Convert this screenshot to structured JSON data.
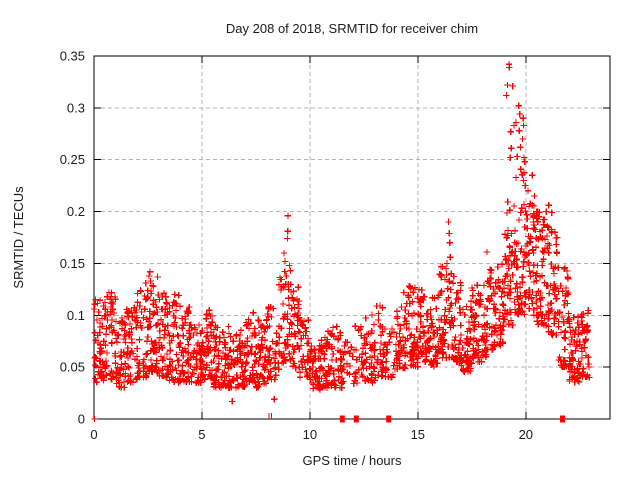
{
  "window": {
    "background": "#ffffff"
  },
  "chart_data": {
    "type": "scatter",
    "title": "Day 208 of 2018, SRMTID for receiver chim",
    "xlabel": "GPS time / hours",
    "ylabel": "SRMTID / TECUs",
    "series_name": "SRMTID",
    "legend": "none",
    "grid": true,
    "xlim": [
      0,
      23.9
    ],
    "ylim": [
      0,
      0.35
    ],
    "xticks": [
      0,
      5,
      10,
      15,
      20
    ],
    "xticklabels": [
      "0",
      "5",
      "10",
      "15",
      "20"
    ],
    "yticks": [
      0,
      0.05,
      0.1,
      0.15,
      0.2,
      0.25,
      0.3,
      0.35
    ],
    "yticklabels": [
      "0",
      "0.05",
      "0.1",
      "0.15",
      "0.2",
      "0.25",
      "0.3",
      "0.35"
    ],
    "marker": {
      "shape": "plus",
      "color": "#ff0000",
      "size": 6.4,
      "stroke_width": 1.2
    },
    "axis_color": "#000000",
    "grid_color": "#b3b3b3",
    "seed": 20180208,
    "density_bins": [
      [
        0.0,
        0.5,
        48,
        0.035,
        0.115
      ],
      [
        0.5,
        1.0,
        48,
        0.038,
        0.122
      ],
      [
        1.0,
        1.5,
        48,
        0.03,
        0.098
      ],
      [
        1.5,
        2.0,
        48,
        0.035,
        0.108
      ],
      [
        2.0,
        2.5,
        48,
        0.04,
        0.126
      ],
      [
        2.5,
        3.0,
        48,
        0.045,
        0.14
      ],
      [
        3.0,
        3.5,
        48,
        0.04,
        0.122
      ],
      [
        3.5,
        4.0,
        48,
        0.035,
        0.12
      ],
      [
        4.0,
        4.5,
        48,
        0.035,
        0.112
      ],
      [
        4.5,
        5.0,
        48,
        0.035,
        0.092
      ],
      [
        5.0,
        5.5,
        48,
        0.038,
        0.105
      ],
      [
        5.5,
        6.0,
        48,
        0.03,
        0.09
      ],
      [
        6.0,
        6.5,
        46,
        0.03,
        0.096
      ],
      [
        6.5,
        7.0,
        48,
        0.03,
        0.09
      ],
      [
        7.0,
        7.5,
        48,
        0.035,
        0.105
      ],
      [
        7.5,
        8.0,
        48,
        0.03,
        0.096
      ],
      [
        8.0,
        8.5,
        42,
        0.038,
        0.11
      ],
      [
        8.5,
        9.0,
        42,
        0.048,
        0.145
      ],
      [
        9.0,
        9.5,
        42,
        0.048,
        0.138
      ],
      [
        9.5,
        10.0,
        42,
        0.04,
        0.1
      ],
      [
        10.0,
        10.5,
        48,
        0.028,
        0.075
      ],
      [
        10.5,
        11.0,
        48,
        0.03,
        0.085
      ],
      [
        11.0,
        11.5,
        42,
        0.03,
        0.09
      ],
      [
        11.5,
        12.0,
        16,
        0.035,
        0.08
      ],
      [
        12.0,
        12.5,
        28,
        0.032,
        0.092
      ],
      [
        12.5,
        13.0,
        42,
        0.035,
        0.105
      ],
      [
        13.0,
        13.5,
        38,
        0.04,
        0.11
      ],
      [
        13.5,
        14.0,
        24,
        0.04,
        0.1
      ],
      [
        14.0,
        14.5,
        48,
        0.048,
        0.122
      ],
      [
        14.5,
        15.0,
        48,
        0.05,
        0.13
      ],
      [
        15.0,
        15.5,
        48,
        0.055,
        0.125
      ],
      [
        15.5,
        16.0,
        48,
        0.05,
        0.13
      ],
      [
        16.0,
        16.5,
        48,
        0.058,
        0.15
      ],
      [
        16.5,
        17.0,
        48,
        0.055,
        0.14
      ],
      [
        17.0,
        17.5,
        48,
        0.045,
        0.12
      ],
      [
        17.5,
        18.0,
        48,
        0.055,
        0.13
      ],
      [
        18.0,
        18.5,
        48,
        0.06,
        0.145
      ],
      [
        18.5,
        19.0,
        48,
        0.07,
        0.15
      ],
      [
        19.0,
        19.5,
        52,
        0.09,
        0.21
      ],
      [
        19.5,
        20.0,
        55,
        0.1,
        0.245
      ],
      [
        20.0,
        20.5,
        55,
        0.1,
        0.21
      ],
      [
        20.5,
        21.0,
        52,
        0.09,
        0.2
      ],
      [
        21.0,
        21.5,
        52,
        0.08,
        0.185
      ],
      [
        21.5,
        22.0,
        48,
        0.05,
        0.15
      ],
      [
        22.0,
        22.5,
        52,
        0.035,
        0.1
      ],
      [
        22.5,
        22.95,
        42,
        0.04,
        0.105
      ]
    ],
    "peak_points": [
      [
        19.22,
        0.342
      ],
      [
        19.23,
        0.339
      ],
      [
        19.15,
        0.322
      ],
      [
        19.4,
        0.321
      ],
      [
        19.1,
        0.312
      ],
      [
        19.67,
        0.302
      ],
      [
        19.72,
        0.294
      ],
      [
        19.55,
        0.286
      ],
      [
        19.45,
        0.283
      ],
      [
        19.7,
        0.278
      ],
      [
        19.3,
        0.277
      ],
      [
        19.75,
        0.262
      ],
      [
        19.33,
        0.261
      ],
      [
        19.6,
        0.253
      ],
      [
        19.28,
        0.252
      ],
      [
        19.88,
        0.29
      ],
      [
        19.9,
        0.283
      ],
      [
        19.85,
        0.27
      ],
      [
        19.92,
        0.252
      ],
      [
        19.95,
        0.248
      ],
      [
        19.9,
        0.23
      ],
      [
        19.97,
        0.225
      ],
      [
        20.3,
        0.235
      ],
      [
        20.1,
        0.22
      ],
      [
        20.4,
        0.215
      ],
      [
        20.15,
        0.205
      ],
      [
        20.5,
        0.2
      ],
      [
        20.6,
        0.195
      ],
      [
        20.35,
        0.19
      ],
      [
        21.06,
        0.206
      ],
      [
        20.95,
        0.2
      ],
      [
        21.2,
        0.199
      ],
      [
        21.0,
        0.186
      ],
      [
        21.35,
        0.18
      ],
      [
        21.45,
        0.175
      ],
      [
        21.5,
        0.146
      ],
      [
        8.98,
        0.196
      ],
      [
        8.97,
        0.181
      ],
      [
        8.96,
        0.174
      ],
      [
        8.8,
        0.16
      ],
      [
        8.85,
        0.152
      ],
      [
        9.05,
        0.148
      ],
      [
        9.1,
        0.143
      ],
      [
        8.9,
        0.138
      ],
      [
        9.0,
        0.13
      ],
      [
        9.02,
        0.125
      ],
      [
        16.42,
        0.19
      ],
      [
        16.45,
        0.179
      ],
      [
        16.48,
        0.17
      ],
      [
        16.5,
        0.156
      ],
      [
        16.35,
        0.15
      ],
      [
        16.3,
        0.145
      ],
      [
        16.55,
        0.14
      ],
      [
        18.2,
        0.161
      ],
      [
        2.6,
        0.142
      ],
      [
        2.55,
        0.138
      ],
      [
        2.62,
        0.133
      ],
      [
        2.4,
        0.131
      ],
      [
        2.75,
        0.128
      ],
      [
        0.02,
        0.106
      ],
      [
        0.7,
        0.122
      ],
      [
        13.1,
        0.109
      ],
      [
        14.35,
        0.122
      ],
      [
        14.6,
        0.128
      ],
      [
        22.6,
        0.098
      ],
      [
        22.85,
        0.09
      ],
      [
        6.4,
        0.017
      ],
      [
        8.35,
        0.019
      ]
    ],
    "zero_marks": [
      {
        "x": 0.03,
        "style": "plus"
      },
      {
        "x": 8.1,
        "style": "tick"
      },
      {
        "x": 8.22,
        "style": "tick"
      },
      {
        "x": 11.5,
        "style": "square"
      },
      {
        "x": 12.15,
        "style": "square"
      },
      {
        "x": 13.65,
        "style": "square"
      },
      {
        "x": 21.7,
        "style": "square"
      }
    ]
  }
}
